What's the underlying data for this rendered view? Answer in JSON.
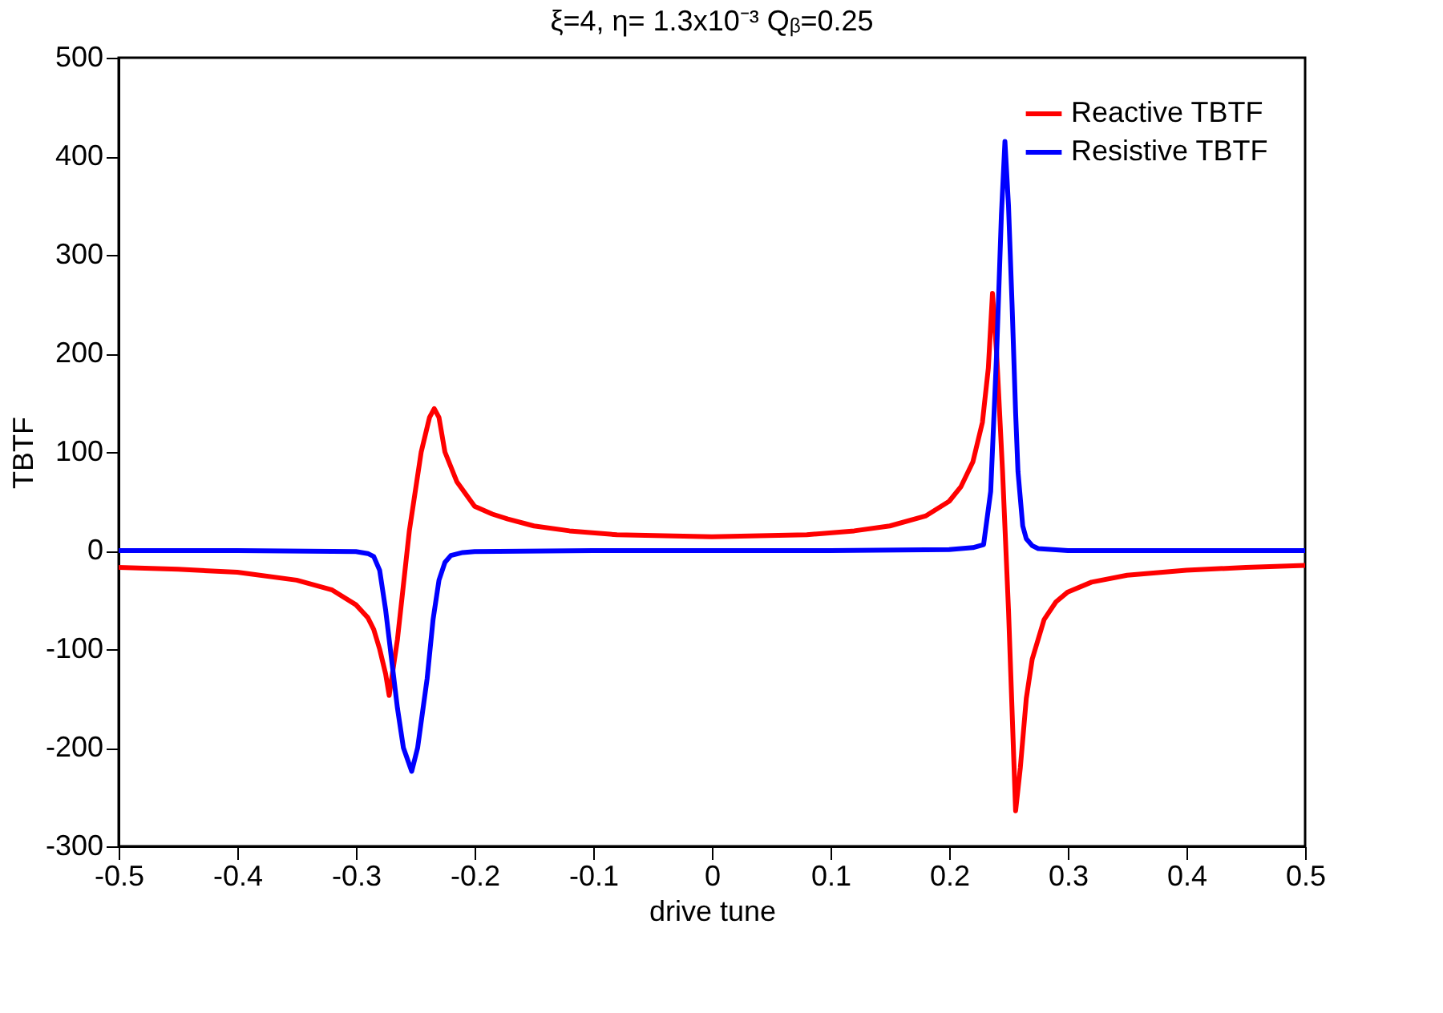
{
  "chart_data": {
    "type": "line",
    "title": "ξ=4, η= 1.3x10⁻³ Qᵦ=0.25",
    "xlabel": "drive tune",
    "ylabel": "TBTF",
    "xlim": [
      -0.5,
      0.5
    ],
    "xticks": [
      -0.5,
      -0.4,
      -0.3,
      -0.2,
      -0.1,
      0,
      0.1,
      0.2,
      0.3,
      0.4,
      0.5
    ],
    "ylim": [
      -300,
      500
    ],
    "yticks": [
      -300,
      -200,
      -100,
      0,
      100,
      200,
      300,
      400,
      500
    ],
    "grid": false,
    "legend": "top right",
    "marker": "none",
    "line_style": "solid",
    "series": [
      {
        "name": "Reactive TBTF",
        "color": "#ff0000",
        "x": [
          -0.5,
          -0.45,
          -0.4,
          -0.35,
          -0.32,
          -0.3,
          -0.29,
          -0.285,
          -0.28,
          -0.275,
          -0.272,
          -0.265,
          -0.255,
          -0.245,
          -0.238,
          -0.234,
          -0.23,
          -0.225,
          -0.215,
          -0.2,
          -0.185,
          -0.172,
          -0.15,
          -0.12,
          -0.08,
          -0.04,
          0,
          0.04,
          0.08,
          0.12,
          0.15,
          0.18,
          0.2,
          0.21,
          0.22,
          0.228,
          0.233,
          0.2365,
          0.24,
          0.245,
          0.25,
          0.256,
          0.26,
          0.265,
          0.27,
          0.28,
          0.29,
          0.3,
          0.32,
          0.35,
          0.4,
          0.45,
          0.5
        ],
        "values": [
          -17,
          -19,
          -22,
          -30,
          -40,
          -55,
          -68,
          -80,
          -100,
          -125,
          -147,
          -90,
          20,
          100,
          135,
          144,
          135,
          100,
          70,
          45,
          37,
          32,
          25,
          20,
          16,
          15,
          14,
          15,
          16,
          20,
          25,
          35,
          50,
          65,
          90,
          130,
          185,
          261,
          200,
          80,
          -60,
          -264,
          -220,
          -150,
          -110,
          -70,
          -52,
          -42,
          -32,
          -25,
          -20,
          -17,
          -15
        ]
      },
      {
        "name": "Resistive TBTF",
        "color": "#0000ff",
        "x": [
          -0.5,
          -0.4,
          -0.3,
          -0.29,
          -0.285,
          -0.28,
          -0.275,
          -0.27,
          -0.265,
          -0.26,
          -0.253,
          -0.248,
          -0.24,
          -0.235,
          -0.23,
          -0.225,
          -0.22,
          -0.21,
          -0.2,
          -0.1,
          0,
          0.1,
          0.2,
          0.22,
          0.229,
          0.235,
          0.24,
          0.244,
          0.247,
          0.25,
          0.253,
          0.256,
          0.258,
          0.262,
          0.265,
          0.27,
          0.275,
          0.3,
          0.4,
          0.5
        ],
        "values": [
          0,
          0,
          -1,
          -3,
          -6,
          -20,
          -60,
          -110,
          -160,
          -200,
          -224,
          -200,
          -130,
          -70,
          -30,
          -12,
          -5,
          -2,
          -1,
          0,
          0,
          0,
          1,
          3,
          6,
          60,
          200,
          340,
          415,
          350,
          250,
          140,
          80,
          25,
          12,
          5,
          2,
          0,
          0,
          0
        ]
      }
    ]
  }
}
